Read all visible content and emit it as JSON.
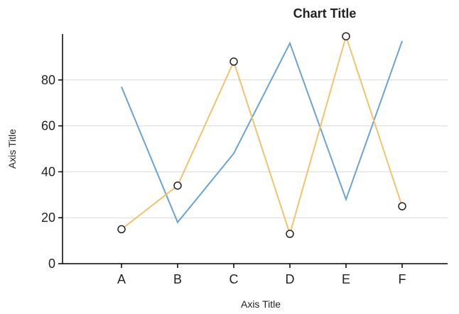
{
  "chart_data": {
    "type": "line",
    "title": "Chart Title",
    "xlabel": "Axis Title",
    "ylabel": "Axis Title",
    "categories": [
      "A",
      "B",
      "C",
      "D",
      "E",
      "F"
    ],
    "ylim": [
      0,
      100
    ],
    "yticks": [
      0,
      20,
      40,
      60,
      80
    ],
    "grid": true,
    "legend": "none",
    "series": [
      {
        "values": [
          77,
          18,
          48,
          96,
          28,
          97
        ],
        "color": "#6aa3d5",
        "markers": false
      },
      {
        "values": [
          15,
          34,
          88,
          13,
          99,
          25
        ],
        "color": "#f2c46a",
        "markers": true
      }
    ],
    "colors": {
      "axis": "#000000",
      "grid": "#d9d9d9",
      "marker_fill": "#ffffff",
      "marker_stroke": "#222222"
    }
  }
}
